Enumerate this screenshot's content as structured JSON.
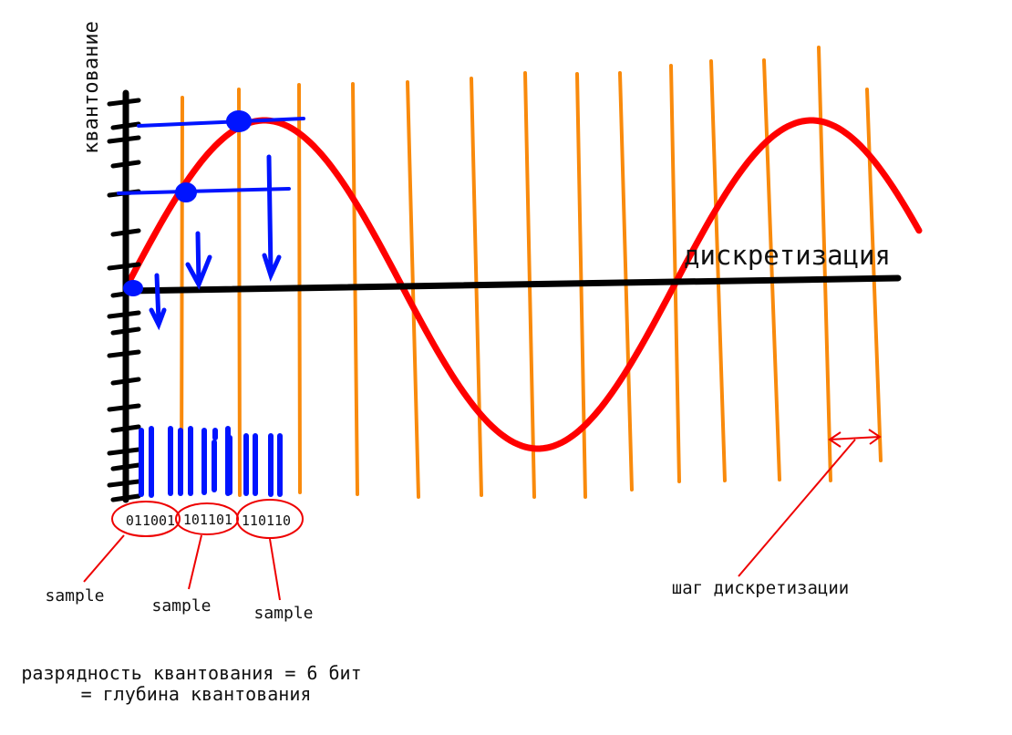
{
  "axes": {
    "vertical_label": "квантование",
    "horizontal_label": "дискретизация"
  },
  "codes": [
    "011001",
    "101101",
    "110110"
  ],
  "samples": [
    "sample",
    "sample",
    "sample"
  ],
  "step_label": "шаг дискретизации",
  "footer": {
    "line1": "разрядность квантования = 6 бит",
    "line2": "= глубина квантования"
  }
}
